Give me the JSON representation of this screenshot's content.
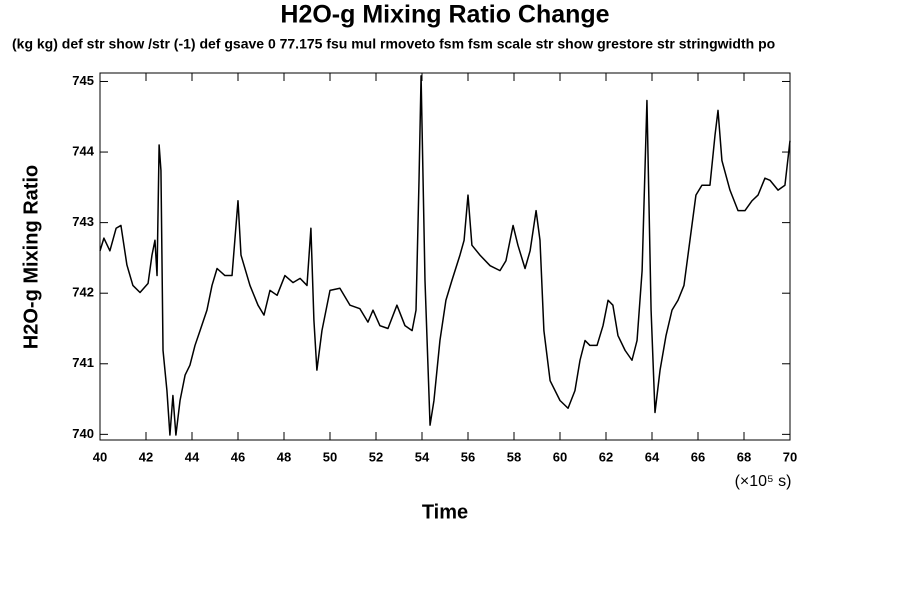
{
  "chart_data": {
    "type": "line",
    "title": "H2O-g Mixing Ratio Change",
    "subtitle": "(kg kg) def str show /str (-1) def gsave 0 77.175 fsu mul rmoveto fsm fsm scale str show grestore str stringwidth po",
    "x_label": "Time",
    "x_unit_label": "(×10⁵ s)",
    "y_label": "H2O-g Mixing Ratio",
    "xlim": [
      40,
      70
    ],
    "xticks": [
      40,
      42,
      44,
      46,
      48,
      50,
      52,
      54,
      56,
      58,
      60,
      62,
      64,
      66,
      68,
      70
    ],
    "ylim": [
      739.92,
      745.12
    ],
    "yticks": [
      740,
      741,
      742,
      743,
      744,
      745
    ],
    "color": "#000000",
    "x": [
      40,
      40.17,
      40.43,
      40.7,
      40.91,
      41.17,
      41.43,
      41.74,
      42.09,
      42.26,
      42.39,
      42.48,
      42.57,
      42.65,
      42.74,
      42.91,
      43.04,
      43.17,
      43.3,
      43.48,
      43.7,
      43.91,
      44.13,
      44.35,
      44.65,
      44.87,
      45.09,
      45.43,
      45.74,
      46,
      46.13,
      46.52,
      46.87,
      47.13,
      47.39,
      47.7,
      48.04,
      48.39,
      48.7,
      49,
      49.17,
      49.3,
      49.43,
      49.65,
      50,
      50.43,
      50.87,
      51.3,
      51.65,
      51.87,
      52.17,
      52.52,
      52.91,
      53.26,
      53.57,
      53.74,
      53.87,
      53.96,
      54.13,
      54.35,
      54.52,
      54.78,
      55.04,
      55.3,
      55.65,
      55.83,
      56,
      56.17,
      56.52,
      56.96,
      57.39,
      57.65,
      57.96,
      58.17,
      58.48,
      58.7,
      58.96,
      59.13,
      59.3,
      59.57,
      60,
      60.35,
      60.65,
      60.87,
      61.09,
      61.3,
      61.61,
      61.87,
      62.09,
      62.3,
      62.52,
      62.83,
      63.13,
      63.35,
      63.57,
      63.78,
      63.96,
      64.13,
      64.35,
      64.61,
      64.87,
      65.13,
      65.39,
      65.65,
      65.91,
      66.17,
      66.52,
      66.74,
      66.87,
      67.04,
      67.39,
      67.74,
      68.04,
      68.35,
      68.61,
      68.91,
      69.13,
      69.48,
      69.78,
      70
    ],
    "values": [
      742.6,
      742.78,
      742.6,
      742.92,
      742.96,
      742.4,
      742.11,
      742.01,
      742.14,
      742.54,
      742.75,
      742.25,
      744.1,
      743.74,
      741.19,
      740.62,
      739.99,
      740.55,
      739.99,
      740.48,
      740.84,
      740.98,
      741.26,
      741.47,
      741.76,
      742.11,
      742.35,
      742.25,
      742.25,
      743.31,
      742.54,
      742.11,
      741.83,
      741.69,
      742.04,
      741.97,
      742.25,
      742.15,
      742.21,
      742.11,
      742.92,
      741.62,
      740.91,
      741.47,
      742.04,
      742.07,
      741.83,
      741.78,
      741.59,
      741.76,
      741.54,
      741.5,
      741.83,
      741.54,
      741.47,
      741.76,
      743.6,
      745.08,
      742.18,
      740.13,
      740.48,
      741.33,
      741.9,
      742.18,
      742.54,
      742.75,
      743.39,
      742.68,
      742.54,
      742.39,
      742.32,
      742.46,
      742.96,
      742.68,
      742.35,
      742.6,
      743.17,
      742.75,
      741.47,
      740.76,
      740.48,
      740.37,
      740.62,
      741.05,
      741.33,
      741.26,
      741.26,
      741.54,
      741.9,
      741.83,
      741.4,
      741.19,
      741.05,
      741.33,
      742.32,
      744.73,
      741.76,
      740.31,
      740.91,
      741.4,
      741.76,
      741.9,
      742.11,
      742.75,
      743.39,
      743.53,
      743.53,
      744.24,
      744.59,
      743.88,
      743.46,
      743.17,
      743.17,
      743.31,
      743.39,
      743.63,
      743.6,
      743.46,
      743.53,
      744.16
    ]
  }
}
